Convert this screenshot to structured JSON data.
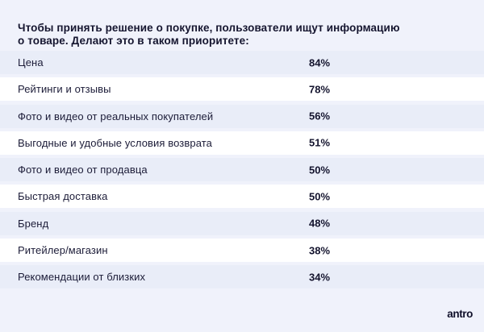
{
  "header": {
    "title_line1": "Чтобы принять решение о покупке, пользователи ищут информацию",
    "title_line2": "о товаре. Делают это в таком приоритете:"
  },
  "table": {
    "rows": [
      {
        "label": "Цена",
        "value": "84%"
      },
      {
        "label": "Рейтинги и отзывы",
        "value": "78%"
      },
      {
        "label": "Фото и видео от реальных покупателей",
        "value": "56%"
      },
      {
        "label": "Выгодные и удобные условия возврата",
        "value": "51%"
      },
      {
        "label": "Фото и видео от продавца",
        "value": "50%"
      },
      {
        "label": "Быстрая доставка",
        "value": "50%"
      },
      {
        "label": "Бренд",
        "value": "48%"
      },
      {
        "label": "Ритейлер/магазин",
        "value": "38%"
      },
      {
        "label": "Рекомендации от близких",
        "value": "34%"
      }
    ]
  },
  "footer": {
    "logo": "antro"
  },
  "colors": {
    "page_background": "#f0f2fb",
    "row_shade": "#e9edf8",
    "row_white": "#ffffff",
    "text": "#16162e"
  },
  "chart_data": {
    "type": "table",
    "title": "Чтобы принять решение о покупке, пользователи ищут информацию о товаре. Делают это в таком приоритете:",
    "categories": [
      "Цена",
      "Рейтинги и отзывы",
      "Фото и видео от реальных покупателей",
      "Выгодные и удобные условия возврата",
      "Фото и видео от продавца",
      "Быстрая доставка",
      "Бренд",
      "Ритейлер/магазин",
      "Рекомендации от близких"
    ],
    "values": [
      84,
      78,
      56,
      51,
      50,
      50,
      48,
      38,
      34
    ],
    "unit": "%",
    "layout": "ranked list, descending, alternating row shading, values left-aligned in a right column"
  }
}
